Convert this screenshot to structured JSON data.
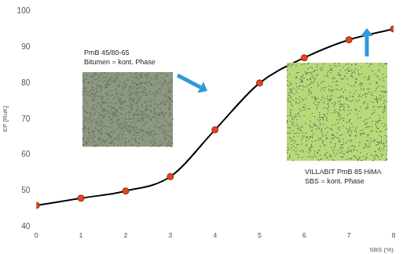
{
  "chart_data": {
    "type": "line",
    "x_label": "SBS (%)",
    "y_label": "EP [RuK]",
    "x": [
      0,
      1,
      2,
      3,
      4,
      5,
      6,
      7,
      8
    ],
    "series": [
      {
        "name": "EP",
        "color": "#000000",
        "marker": "circle",
        "line_style": "smooth",
        "values": [
          46,
          48,
          50,
          54,
          67,
          80,
          87,
          92,
          95
        ]
      }
    ],
    "xlim": [
      0,
      8
    ],
    "xticks": [
      0,
      1,
      2,
      3,
      4,
      5,
      6,
      7,
      8
    ],
    "ylim": [
      40,
      100
    ],
    "yticks": [
      40,
      50,
      60,
      70,
      80,
      90,
      100
    ],
    "grid": false,
    "annotations": [
      [
        "PmB 45/80-65",
        "Bitumen = kont. Phase"
      ],
      [
        "VILLABIT PmB 85 HiMA",
        "SBS = kont. Phase"
      ]
    ]
  }
}
